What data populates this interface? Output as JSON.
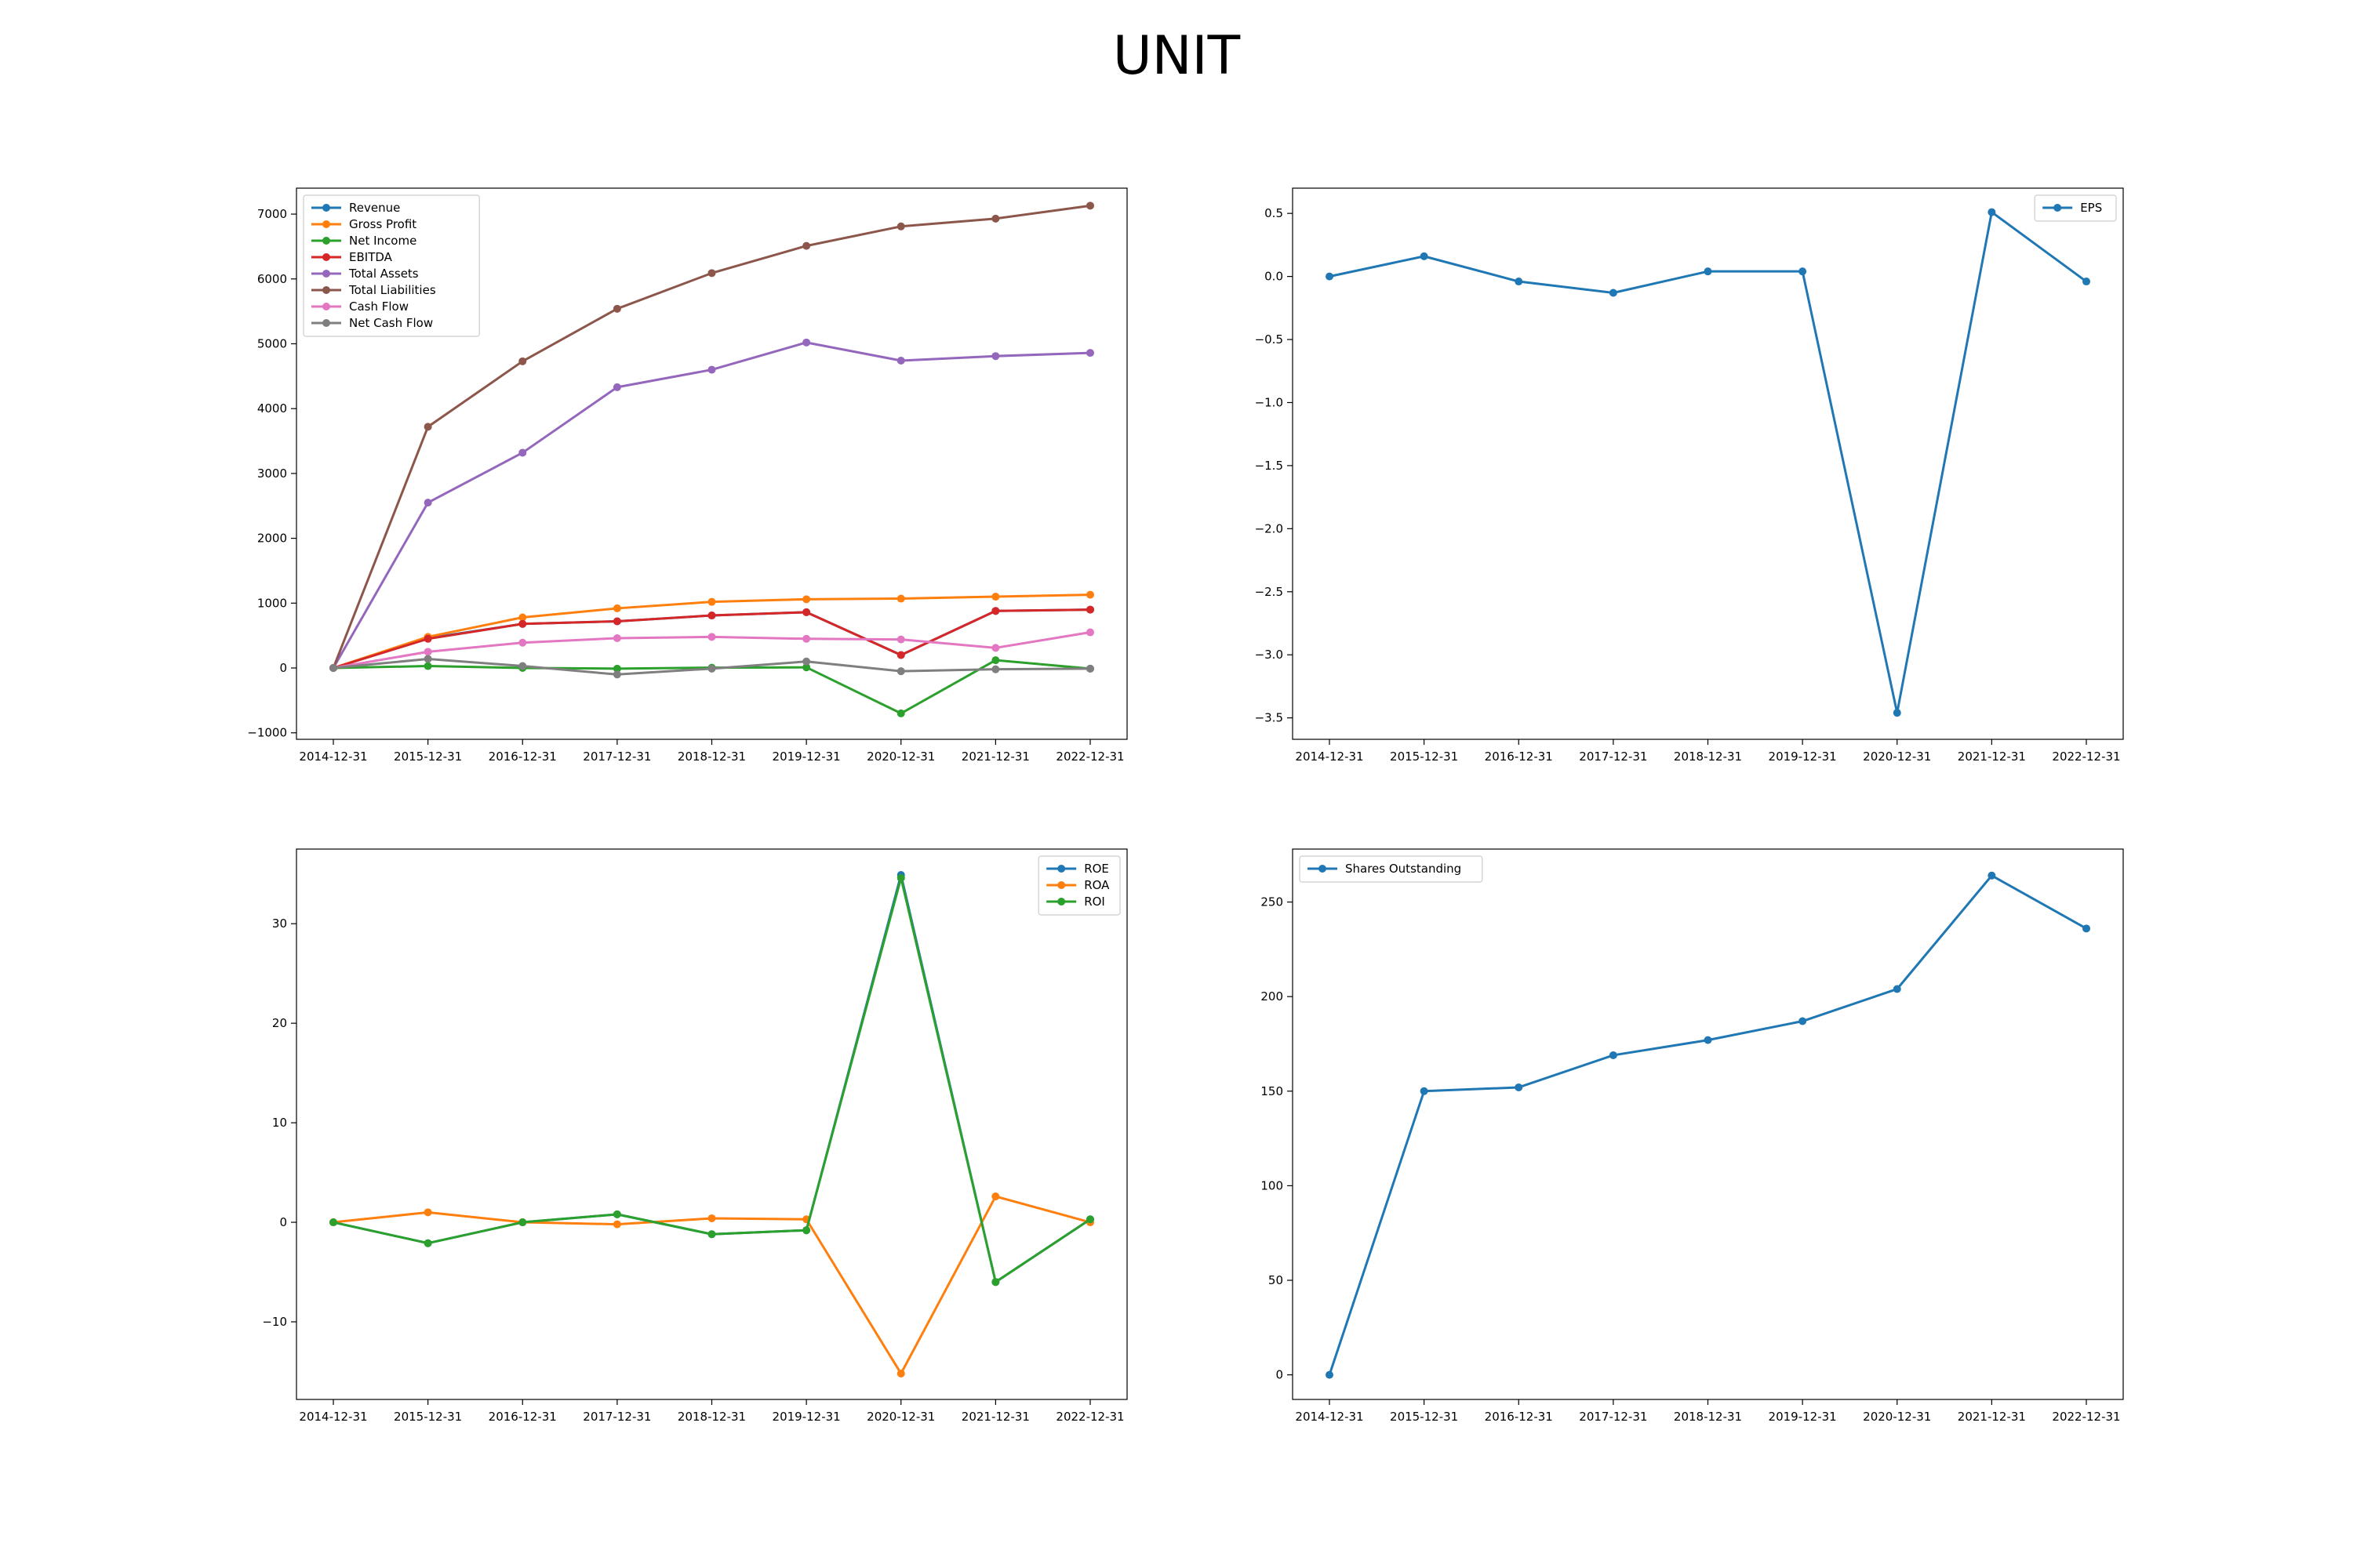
{
  "page": {
    "title": "UNIT"
  },
  "colors": {
    "Revenue": "#1f77b4",
    "Gross Profit": "#ff7f0e",
    "Net Income": "#2ca02c",
    "EBITDA": "#d62728",
    "Total Assets": "#9467bd",
    "Total Liabilities": "#8c564b",
    "Cash Flow": "#e377c2",
    "Net Cash Flow": "#7f7f7f"
  },
  "chart_data": [
    {
      "type": "line",
      "title": "",
      "xlabel": "",
      "ylabel": "",
      "legend": "top-left",
      "grid": false,
      "x": [
        "2014-12-31",
        "2015-12-31",
        "2016-12-31",
        "2017-12-31",
        "2018-12-31",
        "2019-12-31",
        "2020-12-31",
        "2021-12-31",
        "2022-12-31"
      ],
      "ylim": [
        -1100,
        7400
      ],
      "yticks": [
        -1000,
        0,
        1000,
        2000,
        3000,
        4000,
        5000,
        6000,
        7000
      ],
      "series": [
        {
          "name": "Revenue",
          "color": "#1f77b4",
          "values": [
            0,
            460,
            680,
            720,
            810,
            860,
            200,
            880,
            900
          ]
        },
        {
          "name": "Gross Profit",
          "color": "#ff7f0e",
          "values": [
            0,
            480,
            780,
            920,
            1020,
            1060,
            1070,
            1100,
            1130
          ]
        },
        {
          "name": "Net Income",
          "color": "#2ca02c",
          "values": [
            0,
            30,
            0,
            -10,
            5,
            10,
            -700,
            120,
            -10
          ]
        },
        {
          "name": "EBITDA",
          "color": "#d62728",
          "values": [
            0,
            450,
            680,
            720,
            810,
            860,
            200,
            880,
            900
          ]
        },
        {
          "name": "Total Assets",
          "color": "#9467bd",
          "values": [
            0,
            2550,
            3320,
            4330,
            4600,
            5020,
            4740,
            4810,
            4860
          ]
        },
        {
          "name": "Total Liabilities",
          "color": "#8c564b",
          "values": [
            0,
            3720,
            4730,
            5540,
            6090,
            6510,
            6810,
            6930,
            7130
          ]
        },
        {
          "name": "Cash Flow",
          "color": "#e377c2",
          "values": [
            0,
            250,
            390,
            460,
            480,
            450,
            440,
            310,
            550
          ]
        },
        {
          "name": "Net Cash Flow",
          "color": "#7f7f7f",
          "values": [
            0,
            140,
            30,
            -100,
            -10,
            100,
            -50,
            -20,
            -10
          ]
        }
      ]
    },
    {
      "type": "line",
      "title": "",
      "xlabel": "",
      "ylabel": "",
      "legend": "top-right",
      "grid": false,
      "x": [
        "2014-12-31",
        "2015-12-31",
        "2016-12-31",
        "2017-12-31",
        "2018-12-31",
        "2019-12-31",
        "2020-12-31",
        "2021-12-31",
        "2022-12-31"
      ],
      "ylim": [
        -3.67,
        0.7
      ],
      "yticks": [
        -3.5,
        -3.0,
        -2.5,
        -2.0,
        -1.5,
        -1.0,
        -0.5,
        0.0,
        0.5
      ],
      "series": [
        {
          "name": "EPS",
          "color": "#1f77b4",
          "values": [
            0.0,
            0.16,
            -0.04,
            -0.13,
            0.04,
            0.04,
            -3.46,
            0.51,
            -0.04
          ]
        }
      ]
    },
    {
      "type": "line",
      "title": "",
      "xlabel": "",
      "ylabel": "",
      "legend": "top-right",
      "grid": false,
      "x": [
        "2014-12-31",
        "2015-12-31",
        "2016-12-31",
        "2017-12-31",
        "2018-12-31",
        "2019-12-31",
        "2020-12-31",
        "2021-12-31",
        "2022-12-31"
      ],
      "ylim": [
        -17.8,
        37.5
      ],
      "yticks": [
        -10,
        0,
        10,
        20,
        30
      ],
      "series": [
        {
          "name": "ROE",
          "color": "#1f77b4",
          "values": [
            0,
            -2.1,
            0.0,
            0.8,
            -1.2,
            -0.8,
            34.9,
            -6.0,
            0.3
          ]
        },
        {
          "name": "ROA",
          "color": "#ff7f0e",
          "values": [
            0,
            1.0,
            0.0,
            -0.2,
            0.4,
            0.3,
            -15.2,
            2.6,
            0.0
          ]
        },
        {
          "name": "ROI",
          "color": "#2ca02c",
          "values": [
            0,
            -2.1,
            0.0,
            0.8,
            -1.2,
            -0.8,
            34.6,
            -6.0,
            0.3
          ]
        }
      ]
    },
    {
      "type": "line",
      "title": "",
      "xlabel": "",
      "ylabel": "",
      "legend": "top-left",
      "grid": false,
      "x": [
        "2014-12-31",
        "2015-12-31",
        "2016-12-31",
        "2017-12-31",
        "2018-12-31",
        "2019-12-31",
        "2020-12-31",
        "2021-12-31",
        "2022-12-31"
      ],
      "ylim": [
        -13,
        278
      ],
      "yticks": [
        0,
        50,
        100,
        150,
        200,
        250
      ],
      "series": [
        {
          "name": "Shares Outstanding",
          "color": "#1f77b4",
          "values": [
            0,
            150,
            152,
            169,
            177,
            187,
            204,
            264,
            236
          ]
        }
      ]
    }
  ]
}
